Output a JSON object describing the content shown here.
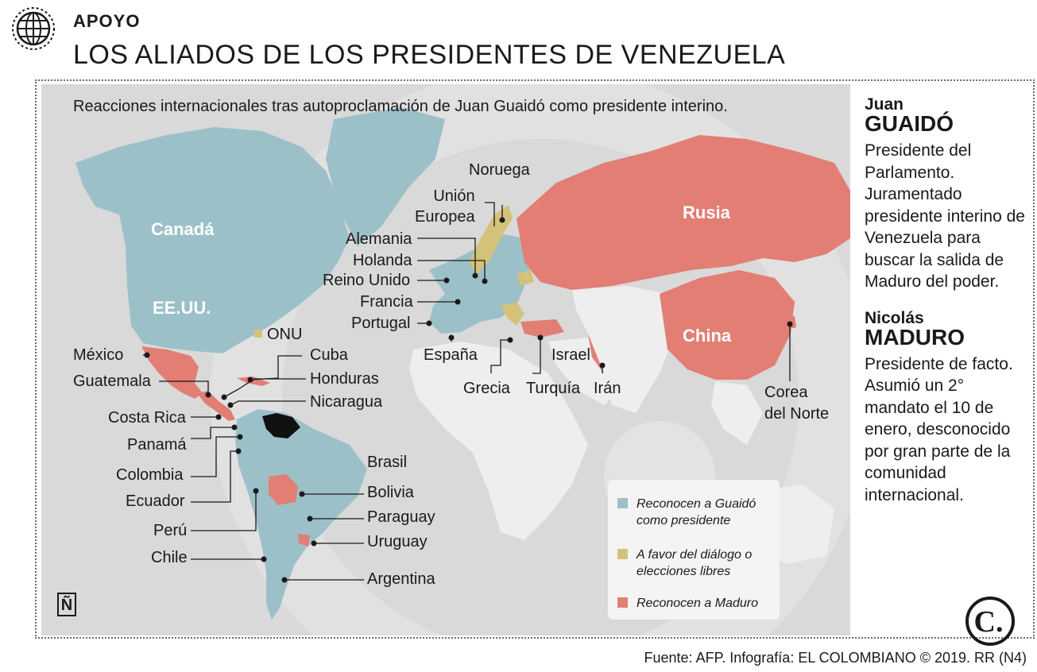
{
  "header": {
    "kicker": "APOYO",
    "title": "LOS ALIADOS DE LOS PRESIDENTES DE VENEZUELA"
  },
  "map": {
    "subtitle": "Reacciones internacionales tras autoproclamación de Juan Guaidó como presidente interino.",
    "region_labels": {
      "canada": "Canadá",
      "usa": "EE.UU.",
      "russia": "Rusia",
      "china": "China"
    },
    "country_labels": {
      "noruega": "Noruega",
      "union_europea": "Unión\nEuropea",
      "alemania": "Alemania",
      "holanda": "Holanda",
      "reino_unido": "Reino Unido",
      "francia": "Francia",
      "portugal": "Portugal",
      "onu": "ONU",
      "espana": "España",
      "grecia": "Grecia",
      "turquia": "Turquía",
      "israel": "Israel",
      "iran": "Irán",
      "corea_del_norte": "Corea\ndel Norte",
      "mexico": "México",
      "cuba": "Cuba",
      "guatemala": "Guatemala",
      "honduras": "Honduras",
      "nicaragua": "Nicaragua",
      "costa_rica": "Costa Rica",
      "panama": "Panamá",
      "colombia": "Colombia",
      "ecuador": "Ecuador",
      "peru": "Perú",
      "chile": "Chile",
      "brasil": "Brasil",
      "bolivia": "Bolivia",
      "paraguay": "Paraguay",
      "uruguay": "Uruguay",
      "argentina": "Argentina"
    },
    "colors": {
      "guaido": "#9cc0c8",
      "dialogo": "#d3c27a",
      "maduro": "#e27e74",
      "other_land": "#eeeeef",
      "background": "#d9d9da",
      "venezuela": "#111111"
    },
    "legend": [
      {
        "key": "guaido",
        "text": "Reconocen a Guaidó como presidente"
      },
      {
        "key": "dialogo",
        "text": "A favor del diálogo o elecciones libres"
      },
      {
        "key": "maduro",
        "text": "Reconocen a Maduro"
      }
    ],
    "logo_letter": "Ñ"
  },
  "sidebar": {
    "guaido": {
      "first": "Juan",
      "last": "GUAIDÓ",
      "desc": "Presidente del Parlamento. Juramentado presidente interino de Venezuela para buscar la salida de Maduro del poder."
    },
    "maduro": {
      "first": "Nicolás",
      "last": "MADURO",
      "desc": "Presidente de facto. Asumió un 2° mandato el 10 de enero, desconocido por gran parte de la comunidad internacional."
    },
    "logo_letter": "C."
  },
  "source": "Fuente: AFP. Infografía: EL COLOMBIANO © 2019. RR (N4)"
}
